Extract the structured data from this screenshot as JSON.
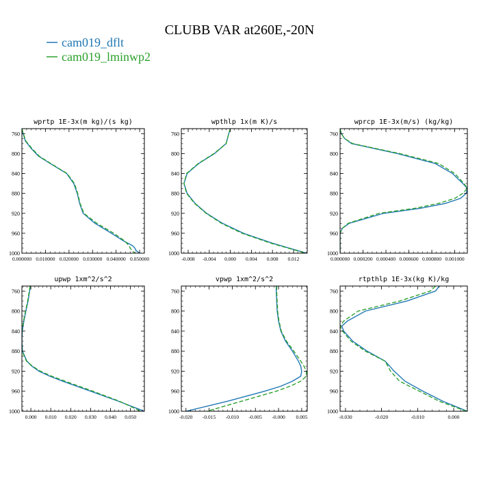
{
  "figure": {
    "title": "CLUBB VAR at260E,-20N",
    "legend": [
      {
        "name": "cam019_dflt",
        "color": "#1f77b4",
        "dash": false
      },
      {
        "name": "cam019_lminwp2",
        "color": "#2ca02c",
        "dash": true
      }
    ],
    "legend_placement": "top-left"
  },
  "chart_data": [
    {
      "type": "line",
      "title": "wprtp  1E-3x(m kg)/(s kg)",
      "xlim": [
        0.0,
        0.052
      ],
      "ylim": [
        1000,
        750
      ],
      "xticks": [
        0.0,
        0.01,
        0.02,
        0.03,
        0.04,
        0.05
      ],
      "xtick_labels": [
        "0.000000",
        "0.010000",
        "0.020000",
        "0.030000",
        "0.040000",
        "0.050000"
      ],
      "yticks": [
        760,
        800,
        840,
        880,
        920,
        960,
        1000
      ],
      "y": [
        750,
        760,
        775,
        790,
        805,
        820,
        840,
        860,
        880,
        900,
        920,
        940,
        960,
        975,
        985,
        990,
        995,
        1000
      ],
      "series": [
        {
          "name": "cam019_dflt",
          "values": [
            0.0,
            0.0005,
            0.0015,
            0.004,
            0.007,
            0.012,
            0.019,
            0.022,
            0.0235,
            0.0245,
            0.026,
            0.031,
            0.038,
            0.043,
            0.047,
            0.048,
            0.0485,
            0.05
          ]
        },
        {
          "name": "cam019_lminwp2",
          "values": [
            0.0,
            0.0006,
            0.0017,
            0.0043,
            0.0073,
            0.0123,
            0.0192,
            0.0223,
            0.0237,
            0.0247,
            0.0263,
            0.0318,
            0.039,
            0.0435,
            0.0455,
            0.046,
            0.0468,
            0.048
          ]
        }
      ]
    },
    {
      "type": "line",
      "title": "wpthlp  1x(m K)/s",
      "xlim": [
        -0.0093,
        0.0146
      ],
      "ylim": [
        1000,
        750
      ],
      "xticks": [
        -0.008,
        -0.004,
        0.0,
        0.004,
        0.008,
        0.012
      ],
      "xtick_labels": [
        "-0.008",
        "-0.004",
        "0.000",
        "0.004",
        "0.008",
        "0.012"
      ],
      "yticks": [
        760,
        800,
        840,
        880,
        920,
        960,
        1000
      ],
      "y": [
        750,
        760,
        780,
        800,
        820,
        840,
        860,
        880,
        900,
        920,
        940,
        960,
        980,
        1000
      ],
      "series": [
        {
          "name": "cam019_dflt",
          "values": [
            0.0,
            -0.0003,
            -0.0008,
            -0.003,
            -0.006,
            -0.0082,
            -0.0088,
            -0.0082,
            -0.0067,
            -0.0045,
            -0.0015,
            0.0025,
            0.008,
            0.0145
          ]
        },
        {
          "name": "cam019_lminwp2",
          "values": [
            0.0,
            -0.0003,
            -0.0008,
            -0.0031,
            -0.0061,
            -0.0083,
            -0.0088,
            -0.0083,
            -0.0068,
            -0.0046,
            -0.0017,
            0.0022,
            0.0077,
            0.0143
          ]
        }
      ]
    },
    {
      "type": "line",
      "title": "wprcp  1E-3x(m/s) (kg/kg)",
      "xlim": [
        0.0,
        0.00111
      ],
      "ylim": [
        1000,
        750
      ],
      "xticks": [
        0.0,
        0.0002,
        0.0004,
        0.0006,
        0.0008,
        0.001
      ],
      "xtick_labels": [
        "0.000000",
        "0.000200",
        "0.000400",
        "0.000600",
        "0.000800",
        "0.001000"
      ],
      "yticks": [
        760,
        800,
        840,
        880,
        920,
        960,
        1000
      ],
      "y": [
        750,
        760,
        770,
        780,
        800,
        820,
        840,
        860,
        870,
        880,
        890,
        900,
        910,
        920,
        940,
        950,
        960,
        970,
        980,
        1000
      ],
      "series": [
        {
          "name": "cam019_dflt",
          "values": [
            0.0,
            1e-05,
            4e-05,
            0.0001,
            0.0005,
            0.00083,
            0.00098,
            0.00107,
            0.00111,
            0.0011,
            0.00105,
            0.00092,
            0.0007,
            0.00038,
            8e-05,
            2e-05,
            0.0,
            0.0,
            0.0,
            0.0
          ]
        },
        {
          "name": "cam019_lminwp2",
          "values": [
            0.0,
            1e-05,
            4e-05,
            0.00011,
            0.00052,
            0.00086,
            0.001,
            0.00108,
            0.00111,
            0.00107,
            0.001,
            0.00086,
            0.00065,
            0.00034,
            7e-05,
            2e-05,
            0.0,
            0.0,
            0.0,
            0.0
          ]
        }
      ]
    },
    {
      "type": "line",
      "title": "upwp  1xm^2/s^2",
      "xlim": [
        -0.0045,
        0.057
      ],
      "ylim": [
        1000,
        750
      ],
      "xticks": [
        0.0,
        0.01,
        0.02,
        0.03,
        0.04,
        0.05
      ],
      "xtick_labels": [
        "0.000",
        "0.010",
        "0.020",
        "0.030",
        "0.040",
        "0.050"
      ],
      "yticks": [
        760,
        800,
        840,
        880,
        920,
        960,
        1000
      ],
      "y": [
        750,
        760,
        780,
        800,
        820,
        840,
        860,
        880,
        900,
        910,
        920,
        930,
        940,
        960,
        980,
        1000
      ],
      "series": [
        {
          "name": "cam019_dflt",
          "values": [
            -0.0002,
            -0.0006,
            -0.0014,
            -0.0025,
            -0.0035,
            -0.0043,
            -0.0045,
            -0.0042,
            -0.002,
            0.0005,
            0.004,
            0.0095,
            0.016,
            0.03,
            0.044,
            0.057
          ]
        },
        {
          "name": "cam019_lminwp2",
          "values": [
            -0.0004,
            -0.0008,
            -0.0016,
            -0.0027,
            -0.0037,
            -0.0045,
            -0.0047,
            -0.0044,
            -0.0022,
            0.0008,
            0.0048,
            0.0105,
            0.0172,
            0.0312,
            0.0445,
            0.0552
          ]
        }
      ]
    },
    {
      "type": "line",
      "title": "vpwp  1xm^2/s^2",
      "xlim": [
        -0.021,
        0.0062
      ],
      "ylim": [
        1000,
        750
      ],
      "xticks": [
        -0.02,
        -0.015,
        -0.01,
        -0.005,
        0.0,
        0.005
      ],
      "xtick_labels": [
        "-0.020",
        "-0.015",
        "-0.010",
        "-0.005",
        "-0.000",
        "0.005"
      ],
      "yticks": [
        760,
        800,
        840,
        880,
        920,
        960,
        1000
      ],
      "y": [
        750,
        760,
        780,
        800,
        820,
        840,
        860,
        880,
        900,
        910,
        920,
        930,
        940,
        950,
        960,
        980,
        1000
      ],
      "series": [
        {
          "name": "cam019_dflt",
          "values": [
            -0.0005,
            -0.0005,
            -0.0004,
            -0.0003,
            0.0,
            0.0005,
            0.0015,
            0.003,
            0.0043,
            0.0048,
            0.005,
            0.0048,
            0.003,
            0.0005,
            -0.003,
            -0.011,
            -0.02
          ]
        },
        {
          "name": "cam019_lminwp2",
          "values": [
            -0.0004,
            -0.0004,
            -0.0003,
            -0.0002,
            0.0001,
            0.0006,
            0.0017,
            0.0033,
            0.0048,
            0.0055,
            0.006,
            0.006,
            0.0048,
            0.0025,
            -0.0005,
            -0.008,
            -0.0155
          ]
        }
      ]
    },
    {
      "type": "line",
      "title": "rtpthlp  1E-3x(kg K)/kg",
      "xlim": [
        -0.0315,
        0.0038
      ],
      "ylim": [
        1000,
        750
      ],
      "xticks": [
        -0.03,
        -0.02,
        -0.01,
        0.0
      ],
      "xtick_labels": [
        "-0.030",
        "-0.020",
        "-0.010",
        "0.000"
      ],
      "yticks": [
        760,
        800,
        840,
        880,
        920,
        960,
        1000
      ],
      "y": [
        750,
        760,
        780,
        800,
        820,
        830,
        840,
        860,
        880,
        900,
        920,
        940,
        960,
        980,
        1000
      ],
      "series": [
        {
          "name": "cam019_dflt",
          "values": [
            -0.004,
            -0.005,
            -0.013,
            -0.0245,
            -0.0295,
            -0.031,
            -0.0305,
            -0.028,
            -0.024,
            -0.019,
            -0.0165,
            -0.0135,
            -0.0085,
            -0.003,
            0.0038
          ]
        },
        {
          "name": "cam019_lminwp2",
          "values": [
            -0.005,
            -0.0065,
            -0.015,
            -0.0265,
            -0.0305,
            -0.0315,
            -0.0308,
            -0.0285,
            -0.0245,
            -0.019,
            -0.0175,
            -0.015,
            -0.0095,
            -0.004,
            0.0035
          ]
        }
      ]
    }
  ]
}
